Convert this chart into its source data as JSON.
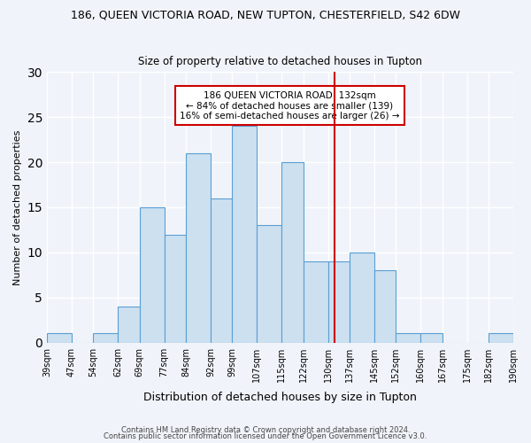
{
  "title": "186, QUEEN VICTORIA ROAD, NEW TUPTON, CHESTERFIELD, S42 6DW",
  "subtitle": "Size of property relative to detached houses in Tupton",
  "xlabel": "Distribution of detached houses by size in Tupton",
  "ylabel": "Number of detached properties",
  "bin_labels": [
    "39sqm",
    "47sqm",
    "54sqm",
    "62sqm",
    "69sqm",
    "77sqm",
    "84sqm",
    "92sqm",
    "99sqm",
    "107sqm",
    "115sqm",
    "122sqm",
    "130sqm",
    "137sqm",
    "145sqm",
    "152sqm",
    "160sqm",
    "167sqm",
    "175sqm",
    "182sqm",
    "190sqm"
  ],
  "bin_edges": [
    39,
    47,
    54,
    62,
    69,
    77,
    84,
    92,
    99,
    107,
    115,
    122,
    130,
    137,
    145,
    152,
    160,
    167,
    175,
    182,
    190
  ],
  "counts": [
    1,
    0,
    1,
    4,
    15,
    12,
    21,
    16,
    24,
    13,
    20,
    9,
    9,
    10,
    8,
    1,
    1,
    0,
    0,
    1
  ],
  "bar_facecolor": "#cce0f0",
  "bar_edgecolor": "#5a9fd4",
  "vline_x": 132,
  "vline_color": "#cc0000",
  "annotation_text": "186 QUEEN VICTORIA ROAD: 132sqm\n← 84% of detached houses are smaller (139)\n16% of semi-detached houses are larger (26) →",
  "annotation_box_edgecolor": "#cc0000",
  "ylim": [
    0,
    30
  ],
  "yticks": [
    0,
    5,
    10,
    15,
    20,
    25,
    30
  ],
  "footer_line1": "Contains HM Land Registry data © Crown copyright and database right 2024.",
  "footer_line2": "Contains public sector information licensed under the Open Government Licence v3.0.",
  "background_color": "#f0f4fa",
  "grid_color": "#ffffff"
}
